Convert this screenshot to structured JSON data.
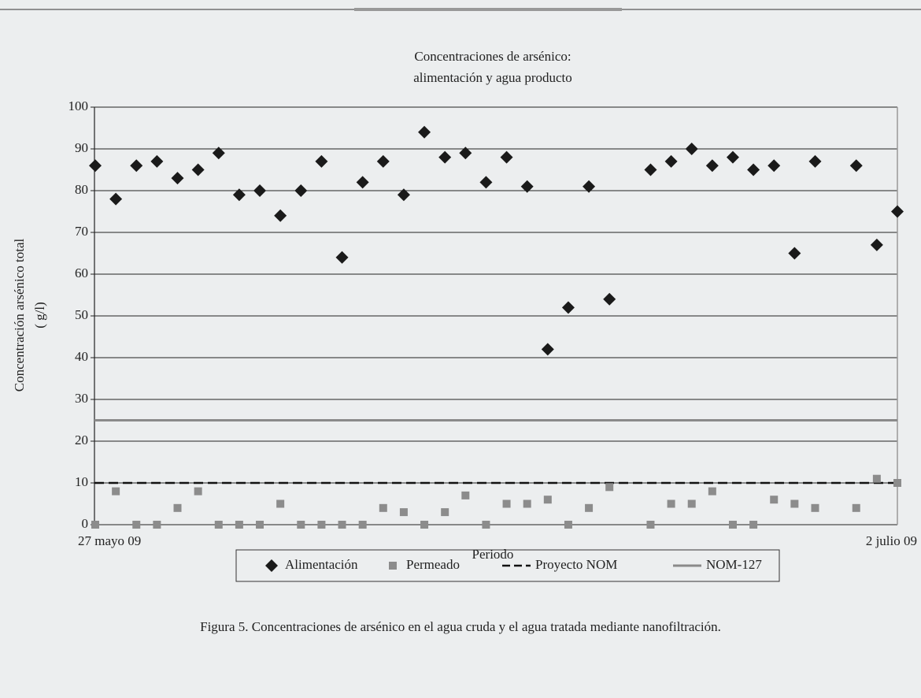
{
  "chart_data": {
    "type": "scatter",
    "title": [
      "Concentraciones de arsénico:",
      "alimentación y agua producto"
    ],
    "x_label": "Periodo",
    "y_label": [
      "Concentración arsénico total",
      "( g/l)"
    ],
    "categories": [
      "27 mayo 09",
      null,
      null,
      null,
      null,
      null,
      null,
      null,
      null,
      null,
      null,
      null,
      null,
      null,
      null,
      null,
      null,
      null,
      null,
      null,
      null,
      null,
      null,
      null,
      null,
      null,
      null,
      null,
      null,
      null,
      null,
      null,
      null,
      null,
      null,
      null,
      null,
      null,
      null,
      "2 julio 09"
    ],
    "series": [
      {
        "name": "Alimentación",
        "marker": "diamond",
        "color": "#1a1a1a",
        "values": [
          86,
          78,
          86,
          87,
          83,
          85,
          89,
          79,
          80,
          74,
          80,
          87,
          64,
          82,
          87,
          79,
          94,
          88,
          89,
          82,
          88,
          81,
          42,
          52,
          81,
          54,
          null,
          85,
          87,
          90,
          86,
          88,
          85,
          86,
          65,
          87,
          null,
          86,
          67,
          75
        ]
      },
      {
        "name": "Permeado",
        "marker": "square",
        "color": "#8c8c8c",
        "values": [
          0,
          8,
          0,
          0,
          4,
          8,
          0,
          0,
          0,
          5,
          0,
          0,
          0,
          0,
          4,
          3,
          0,
          3,
          7,
          0,
          5,
          5,
          6,
          0,
          4,
          9,
          null,
          0,
          5,
          5,
          8,
          0,
          0,
          6,
          5,
          4,
          null,
          4,
          11,
          10
        ]
      }
    ],
    "reference_lines": [
      {
        "name": "Proyecto NOM",
        "value": 10,
        "color": "#111111",
        "dashed": true
      },
      {
        "name": "NOM-127",
        "value": 25,
        "color": "#8a8a8a",
        "dashed": false
      }
    ],
    "ylim": [
      0,
      100
    ],
    "yticks": [
      0,
      10,
      20,
      30,
      40,
      50,
      60,
      70,
      80,
      90,
      100
    ],
    "grid": true
  },
  "caption": "Figura 5. Concentraciones de arsénico en el agua cruda y el agua tratada mediante nanofiltración."
}
